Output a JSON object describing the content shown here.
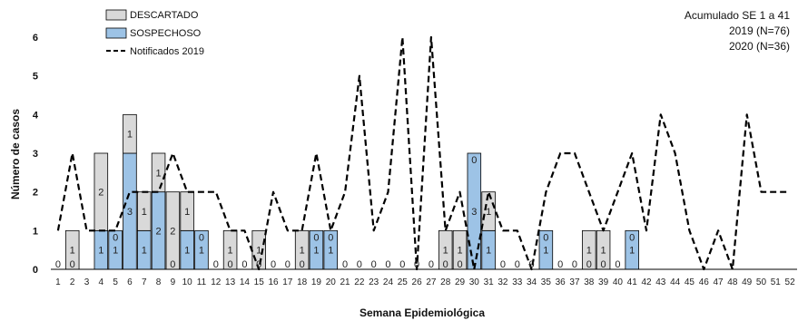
{
  "chart_data": {
    "type": "bar",
    "xlabel": "Semana Epidemiológica",
    "ylabel": "Número de casos",
    "ylim": [
      0,
      6
    ],
    "yticks": [
      "0",
      "1",
      "2",
      "3",
      "4",
      "5",
      "6"
    ],
    "categories": [
      "1",
      "2",
      "3",
      "4",
      "5",
      "6",
      "7",
      "8",
      "9",
      "10",
      "11",
      "12",
      "13",
      "14",
      "15",
      "16",
      "17",
      "18",
      "19",
      "20",
      "21",
      "22",
      "23",
      "24",
      "25",
      "26",
      "27",
      "28",
      "29",
      "30",
      "31",
      "32",
      "33",
      "34",
      "35",
      "36",
      "37",
      "38",
      "39",
      "40",
      "41",
      "42",
      "43",
      "44",
      "45",
      "46",
      "47",
      "48",
      "49",
      "50",
      "51",
      "52"
    ],
    "grid": false,
    "legend_position": "top-left",
    "annotations": [
      "Acumulado SE 1 a 41",
      "2019 (N=76)",
      "2020 (N=36)"
    ],
    "series": [
      {
        "name": "SOSPECHOSO",
        "kind": "bar-stacked-bottom",
        "color": "#9DC3E6",
        "values": [
          0,
          0,
          null,
          1,
          1,
          3,
          1,
          2,
          0,
          1,
          1,
          0,
          0,
          0,
          0,
          0,
          0,
          0,
          1,
          1,
          0,
          0,
          0,
          0,
          0,
          0,
          0,
          0,
          0,
          3,
          1,
          0,
          0,
          0,
          1,
          0,
          0,
          0,
          0,
          0,
          1,
          null,
          null,
          null,
          null,
          null,
          null,
          null,
          null,
          null,
          null,
          null
        ]
      },
      {
        "name": "DESCARTADO",
        "kind": "bar-stacked-top",
        "color": "#D9D9D9",
        "values": [
          0,
          1,
          null,
          2,
          0,
          1,
          1,
          1,
          2,
          1,
          0,
          0,
          1,
          0,
          1,
          0,
          0,
          1,
          0,
          0,
          0,
          0,
          0,
          0,
          0,
          0,
          0,
          1,
          1,
          0,
          1,
          0,
          0,
          0,
          0,
          0,
          0,
          1,
          1,
          0,
          0,
          null,
          null,
          null,
          null,
          null,
          null,
          null,
          null,
          null,
          null,
          null
        ]
      },
      {
        "name": "Notificados 2019",
        "kind": "line-dashed",
        "color": "#000000",
        "values": [
          1,
          3,
          1,
          1,
          1,
          2,
          2,
          2,
          3,
          2,
          2,
          2,
          1,
          1,
          0,
          2,
          1,
          1,
          3,
          1,
          2,
          5,
          1,
          2,
          6,
          0,
          6,
          1,
          2,
          0,
          2,
          1,
          1,
          0,
          2,
          3,
          3,
          2,
          1,
          2,
          3,
          1,
          4,
          3,
          1,
          0,
          1,
          0,
          4,
          2,
          2,
          2
        ]
      }
    ]
  }
}
